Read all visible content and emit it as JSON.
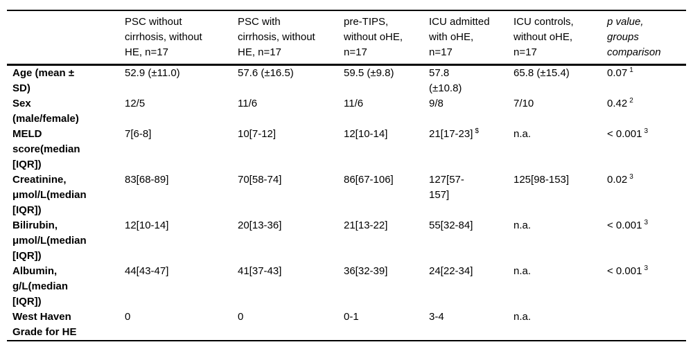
{
  "page": {
    "background_color": "#ffffff",
    "text_color": "#000000"
  },
  "table": {
    "columns": [
      {
        "header": ""
      },
      {
        "header": "PSC without\ncirrhosis, without\nHE, n=17"
      },
      {
        "header": "PSC with\ncirrhosis, without\nHE, n=17"
      },
      {
        "header": "pre-TIPS,\nwithout oHE,\nn=17"
      },
      {
        "header": "ICU admitted\nwith oHE,\nn=17"
      },
      {
        "header": "ICU controls,\nwithout oHE,\nn=17"
      },
      {
        "header": "p value,\ngroups\ncomparison",
        "italic": true
      }
    ],
    "rows": [
      {
        "label": "Age (mean ±\nSD)",
        "cells": [
          {
            "text": "52.9 (±11.0)"
          },
          {
            "text": "57.6 (±16.5)"
          },
          {
            "text": "59.5 (±9.8)"
          },
          {
            "text": "57.8\n(±10.8)"
          },
          {
            "text": "65.8 (±15.4)"
          },
          {
            "text": "0.07",
            "sup": "1"
          }
        ]
      },
      {
        "label": "Sex\n(male/female)",
        "cells": [
          {
            "text": "12/5"
          },
          {
            "text": "11/6"
          },
          {
            "text": "11/6"
          },
          {
            "text": "9/8"
          },
          {
            "text": "7/10"
          },
          {
            "text": "0.42",
            "sup": "2"
          }
        ]
      },
      {
        "label": "MELD\nscore(median\n[IQR])",
        "cells": [
          {
            "text": "7[6-8]"
          },
          {
            "text": "10[7-12]"
          },
          {
            "text": "12[10-14]"
          },
          {
            "text": "21[17-23]",
            "sup": "$"
          },
          {
            "text": "n.a."
          },
          {
            "text": "< 0.001",
            "sup": "3"
          }
        ]
      },
      {
        "label": "Creatinine,\nμmol/L(median\n[IQR])",
        "cells": [
          {
            "text": "83[68-89]"
          },
          {
            "text": "70[58-74]"
          },
          {
            "text": "86[67-106]"
          },
          {
            "text": "127[57-\n157]"
          },
          {
            "text": "125[98-153]"
          },
          {
            "text": "0.02",
            "sup": "3"
          }
        ]
      },
      {
        "label": "Bilirubin,\nμmol/L(median\n[IQR])",
        "cells": [
          {
            "text": "12[10-14]"
          },
          {
            "text": "20[13-36]"
          },
          {
            "text": "21[13-22]"
          },
          {
            "text": "55[32-84]"
          },
          {
            "text": "n.a."
          },
          {
            "text": "< 0.001",
            "sup": "3"
          }
        ]
      },
      {
        "label": "Albumin,\ng/L(median\n[IQR])",
        "cells": [
          {
            "text": "44[43-47]"
          },
          {
            "text": "41[37-43]"
          },
          {
            "text": "36[32-39]"
          },
          {
            "text": "24[22-34]"
          },
          {
            "text": "n.a."
          },
          {
            "text": "< 0.001",
            "sup": "3"
          }
        ]
      },
      {
        "label": "West Haven\nGrade for HE",
        "cells": [
          {
            "text": "0"
          },
          {
            "text": "0"
          },
          {
            "text": "0-1"
          },
          {
            "text": "3-4"
          },
          {
            "text": "n.a."
          },
          {
            "text": ""
          }
        ]
      }
    ]
  }
}
